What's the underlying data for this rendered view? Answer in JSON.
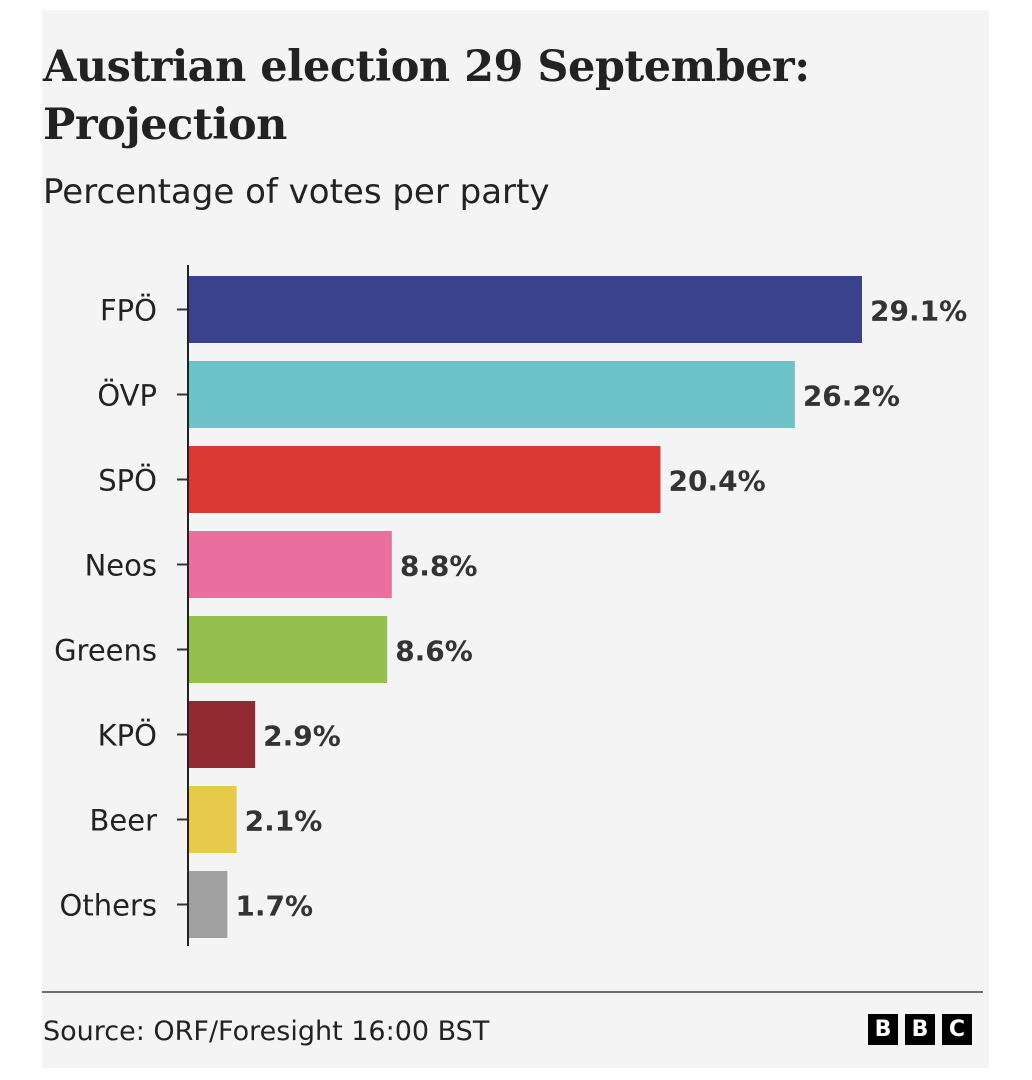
{
  "chart_data": {
    "type": "bar",
    "orientation": "horizontal",
    "title": "Austrian election 29 September: Projection",
    "subtitle": "Percentage of votes per party",
    "categories": [
      "FPÖ",
      "ÖVP",
      "SPÖ",
      "Neos",
      "Greens",
      "KPÖ",
      "Beer",
      "Others"
    ],
    "values": [
      29.1,
      26.2,
      20.4,
      8.8,
      8.6,
      2.9,
      2.1,
      1.7
    ],
    "data_labels": [
      "29.1%",
      "26.2%",
      "20.4%",
      "8.8%",
      "8.6%",
      "2.9%",
      "2.1%",
      "1.7%"
    ],
    "colors": [
      "#3b428c",
      "#6dc2c8",
      "#da3a35",
      "#eb6f9e",
      "#93c04e",
      "#922a32",
      "#e6cb4a",
      "#a0a0a0"
    ],
    "xlim": [
      0,
      30
    ],
    "grid": false,
    "xlabel": "",
    "ylabel": ""
  },
  "footer": {
    "source": "Source: ORF/Foresight 16:00 BST",
    "logo": "BBC"
  }
}
